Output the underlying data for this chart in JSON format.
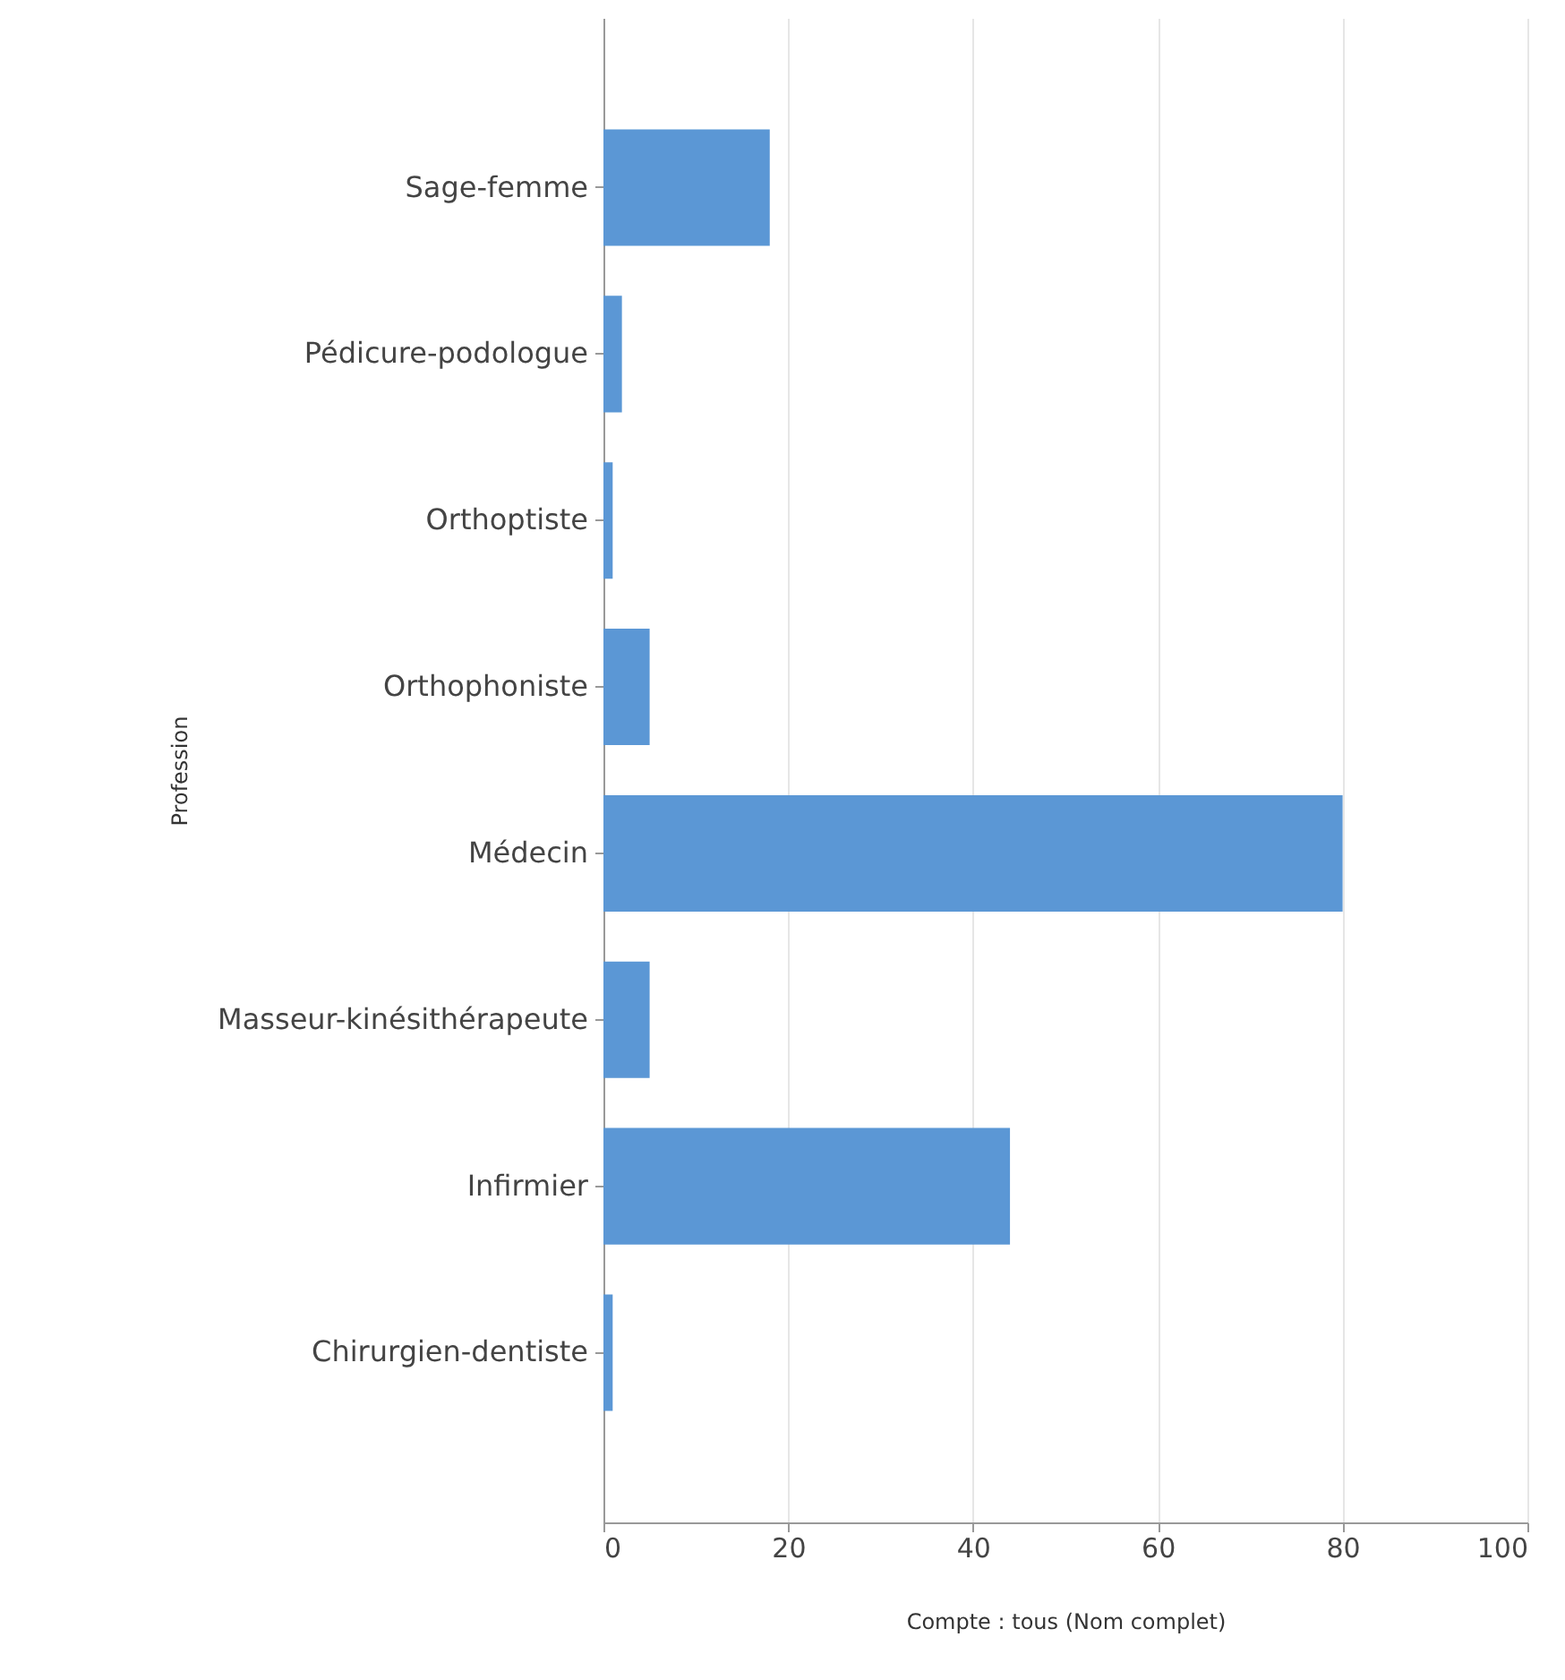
{
  "chart_data": {
    "type": "bar",
    "orientation": "horizontal",
    "xlabel": "Compte : tous (Nom complet)",
    "ylabel": "Profession",
    "categories": [
      "Sage-femme",
      "Pédicure-podologue",
      "Orthoptiste",
      "Orthophoniste",
      "Médecin",
      "Masseur-kinésithérapeute",
      "Infirmier",
      "Chirurgien-dentiste"
    ],
    "values": [
      18,
      2,
      1,
      5,
      80,
      5,
      44,
      1
    ],
    "color": "#5b97d5",
    "xlim": [
      0,
      100
    ],
    "xticks": [
      0,
      20,
      40,
      60,
      80,
      100
    ],
    "grid": "x"
  }
}
